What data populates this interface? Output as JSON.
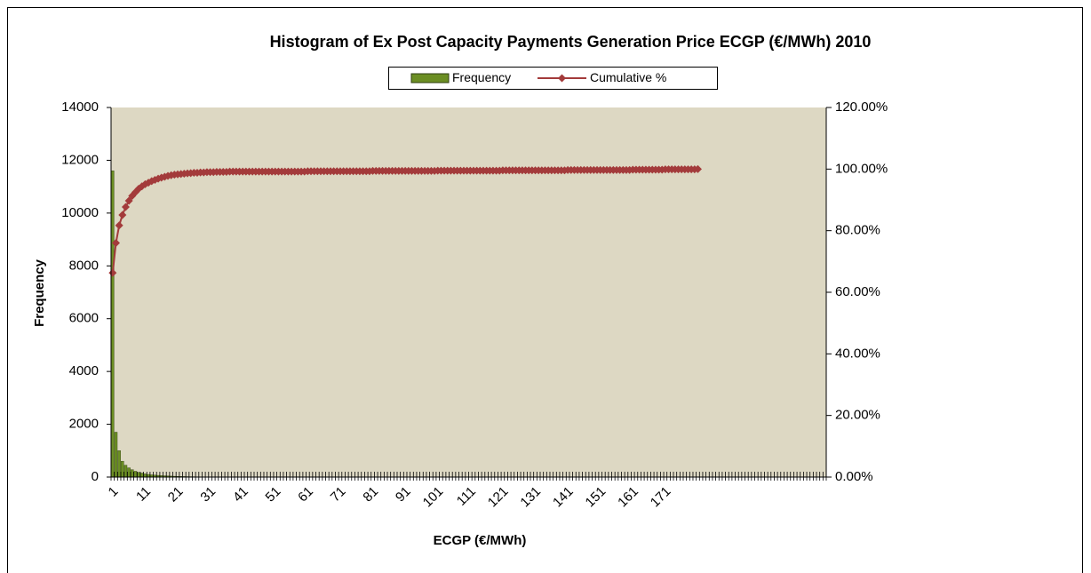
{
  "chart_data": {
    "type": "histogram_pareto",
    "title": "Histogram of Ex Post Capacity Payments Generation Price ECGP (€/MWh) 2010",
    "x_label": "ECGP (€/MWh)",
    "y_label": "Frequency",
    "legend": "top",
    "categories": [
      "1",
      null,
      null,
      null,
      null,
      null,
      null,
      null,
      null,
      null,
      "11",
      null,
      null,
      null,
      null,
      null,
      null,
      null,
      null,
      null,
      "21",
      null,
      null,
      null,
      null,
      null,
      null,
      null,
      null,
      null,
      "31",
      null,
      null,
      null,
      null,
      null,
      null,
      null,
      null,
      null,
      "41",
      null,
      null,
      null,
      null,
      null,
      null,
      null,
      null,
      null,
      "51",
      null,
      null,
      null,
      null,
      null,
      null,
      null,
      null,
      null,
      "61",
      null,
      null,
      null,
      null,
      null,
      null,
      null,
      null,
      null,
      "71",
      null,
      null,
      null,
      null,
      null,
      null,
      null,
      null,
      null,
      "81",
      null,
      null,
      null,
      null,
      null,
      null,
      null,
      null,
      null,
      "91",
      null,
      null,
      null,
      null,
      null,
      null,
      null,
      null,
      null,
      "101",
      null,
      null,
      null,
      null,
      null,
      null,
      null,
      null,
      null,
      "111",
      null,
      null,
      null,
      null,
      null,
      null,
      null,
      null,
      null,
      "121",
      null,
      null,
      null,
      null,
      null,
      null,
      null,
      null,
      null,
      "131",
      null,
      null,
      null,
      null,
      null,
      null,
      null,
      null,
      null,
      "141",
      null,
      null,
      null,
      null,
      null,
      null,
      null,
      null,
      null,
      "151",
      null,
      null,
      null,
      null,
      null,
      null,
      null,
      null,
      null,
      "161",
      null,
      null,
      null,
      null,
      null,
      null,
      null,
      null,
      null,
      "171",
      null,
      null,
      null,
      null,
      null,
      null,
      null,
      null,
      null,
      null,
      null,
      null,
      null,
      null,
      null,
      null,
      null,
      null,
      null,
      null,
      null,
      null,
      null,
      null,
      null,
      null,
      null,
      null,
      null,
      null,
      null,
      null,
      null,
      null,
      null,
      null,
      null,
      null,
      null,
      null,
      null,
      null,
      null,
      null,
      null,
      null,
      null,
      null,
      null
    ],
    "series": [
      {
        "name": "Frequency",
        "color": "#6b8e23",
        "values": [
          11600,
          1700,
          1000,
          600,
          450,
          350,
          280,
          220,
          180,
          150,
          120,
          100,
          85,
          75,
          65,
          55,
          48,
          42,
          36,
          30,
          26,
          22,
          19,
          16,
          14,
          12,
          10,
          9,
          8,
          7,
          6,
          5,
          5,
          4,
          4,
          3,
          3,
          3,
          2,
          2,
          1,
          1,
          1,
          1,
          1,
          1,
          1,
          1,
          1,
          1,
          1,
          1,
          1,
          1,
          1,
          1,
          1,
          1,
          1,
          1,
          1,
          1,
          1,
          1,
          1,
          1,
          1,
          1,
          1,
          1,
          1,
          1,
          1,
          1,
          1,
          1,
          1,
          1,
          1,
          1,
          1,
          1,
          1,
          1,
          1,
          1,
          1,
          1,
          1,
          1,
          1,
          1,
          1,
          1,
          1,
          1,
          1,
          1,
          1,
          1,
          1,
          1,
          1,
          1,
          1,
          1,
          1,
          1,
          1,
          1,
          1,
          1,
          1,
          1,
          1,
          1,
          1,
          1,
          1,
          1,
          1,
          1,
          1,
          1,
          1,
          1,
          1,
          1,
          1,
          1,
          1,
          1,
          1,
          1,
          1,
          1,
          1,
          1,
          1,
          1,
          1,
          1,
          1,
          1,
          1,
          1,
          1,
          1,
          1,
          1,
          1,
          1,
          1,
          1,
          1,
          1,
          1,
          1,
          1,
          1,
          1,
          1,
          1,
          1,
          1,
          1,
          1,
          1,
          1,
          1,
          1,
          1,
          1,
          1,
          1,
          1,
          1,
          1,
          1,
          1,
          1,
          0,
          0,
          0,
          0,
          0,
          0,
          0,
          0,
          0,
          0,
          0,
          0,
          0,
          0,
          0,
          0,
          0,
          0,
          0,
          0,
          0,
          0,
          0,
          0,
          0,
          0,
          0,
          0,
          0,
          0,
          0,
          0,
          0,
          0,
          0,
          0,
          0,
          0,
          0
        ]
      },
      {
        "name": "Cumulative %",
        "color": "#a33b3b",
        "axis": "y2",
        "values": [
          66.3,
          76.0,
          81.7,
          85.1,
          87.7,
          89.7,
          91.3,
          92.5,
          93.6,
          94.4,
          95.1,
          95.6,
          96.1,
          96.5,
          96.9,
          97.2,
          97.5,
          97.8,
          98.0,
          98.2,
          98.3,
          98.4,
          98.5,
          98.6,
          98.7,
          98.8,
          98.8,
          98.9,
          98.9,
          99.0,
          99.0,
          99.0,
          99.1,
          99.1,
          99.1,
          99.1,
          99.2,
          99.2,
          99.2,
          99.2,
          99.2,
          99.2,
          99.2,
          99.2,
          99.2,
          99.2,
          99.2,
          99.2,
          99.2,
          99.2,
          99.2,
          99.2,
          99.2,
          99.2,
          99.2,
          99.2,
          99.2,
          99.2,
          99.2,
          99.2,
          99.3,
          99.3,
          99.3,
          99.3,
          99.3,
          99.3,
          99.3,
          99.3,
          99.3,
          99.3,
          99.3,
          99.3,
          99.3,
          99.3,
          99.3,
          99.3,
          99.3,
          99.3,
          99.3,
          99.3,
          99.4,
          99.4,
          99.4,
          99.4,
          99.4,
          99.4,
          99.4,
          99.4,
          99.4,
          99.4,
          99.4,
          99.4,
          99.4,
          99.4,
          99.4,
          99.4,
          99.4,
          99.4,
          99.4,
          99.4,
          99.5,
          99.5,
          99.5,
          99.5,
          99.5,
          99.5,
          99.5,
          99.5,
          99.5,
          99.5,
          99.5,
          99.5,
          99.5,
          99.5,
          99.5,
          99.5,
          99.5,
          99.5,
          99.5,
          99.5,
          99.6,
          99.6,
          99.6,
          99.6,
          99.6,
          99.6,
          99.6,
          99.6,
          99.6,
          99.6,
          99.6,
          99.6,
          99.6,
          99.6,
          99.6,
          99.6,
          99.6,
          99.6,
          99.6,
          99.6,
          99.7,
          99.7,
          99.7,
          99.7,
          99.7,
          99.7,
          99.7,
          99.7,
          99.7,
          99.7,
          99.7,
          99.7,
          99.7,
          99.7,
          99.7,
          99.7,
          99.7,
          99.7,
          99.7,
          99.7,
          99.8,
          99.8,
          99.8,
          99.8,
          99.8,
          99.8,
          99.8,
          99.8,
          99.8,
          99.8,
          99.9,
          99.9,
          99.9,
          99.9,
          99.9,
          99.9,
          99.9,
          99.9,
          99.9,
          99.9,
          100,
          null,
          null,
          null,
          null,
          null,
          null,
          null,
          null,
          null,
          null,
          null,
          null,
          null,
          null,
          null,
          null,
          null,
          null,
          null,
          null,
          null,
          null,
          null,
          null,
          null,
          null,
          null,
          null,
          null,
          null,
          null,
          null,
          null,
          null,
          null,
          null,
          null,
          null,
          null
        ]
      }
    ],
    "ylim": [
      0,
      14000
    ],
    "yticks": [
      0,
      2000,
      4000,
      6000,
      8000,
      10000,
      12000,
      14000
    ],
    "y2lim": [
      0,
      120
    ],
    "y2ticks": [
      {
        "value": 0,
        "label": "0.00%"
      },
      {
        "value": 20,
        "label": "20.00%"
      },
      {
        "value": 40,
        "label": "40.00%"
      },
      {
        "value": 60,
        "label": "60.00%"
      },
      {
        "value": 80,
        "label": "80.00%"
      },
      {
        "value": 100,
        "label": "100.00%"
      },
      {
        "value": 120,
        "label": "120.00%"
      }
    ],
    "plot_background": "#ddd8c3",
    "grid": false
  }
}
